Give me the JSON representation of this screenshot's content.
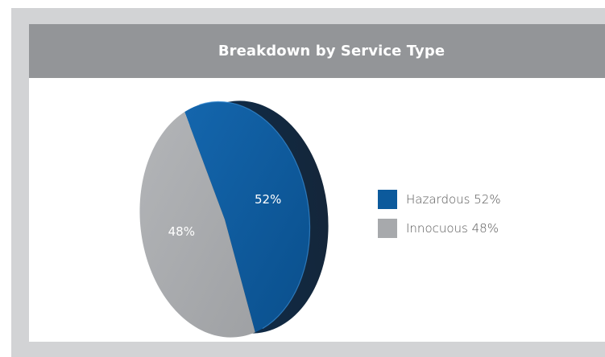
{
  "header": {
    "title": "Breakdown by Service Type"
  },
  "colors": {
    "frame": "#d2d3d5",
    "header_bg": "#939598",
    "series_hazardous": "#0c5a9c",
    "series_innocuous": "#a7a9ac"
  },
  "chart_data": {
    "type": "pie",
    "title": "Breakdown by Service Type",
    "style": "3d-tilted",
    "legend_position": "right",
    "slices": [
      {
        "label": "Hazardous",
        "value": 52,
        "unit": "%",
        "data_label": "52%",
        "legend_label": "Hazardous 52%",
        "color": "#0c5a9c"
      },
      {
        "label": "Innocuous",
        "value": 48,
        "unit": "%",
        "data_label": "48%",
        "legend_label": "Innocuous 48%",
        "color": "#a7a9ac"
      }
    ]
  }
}
